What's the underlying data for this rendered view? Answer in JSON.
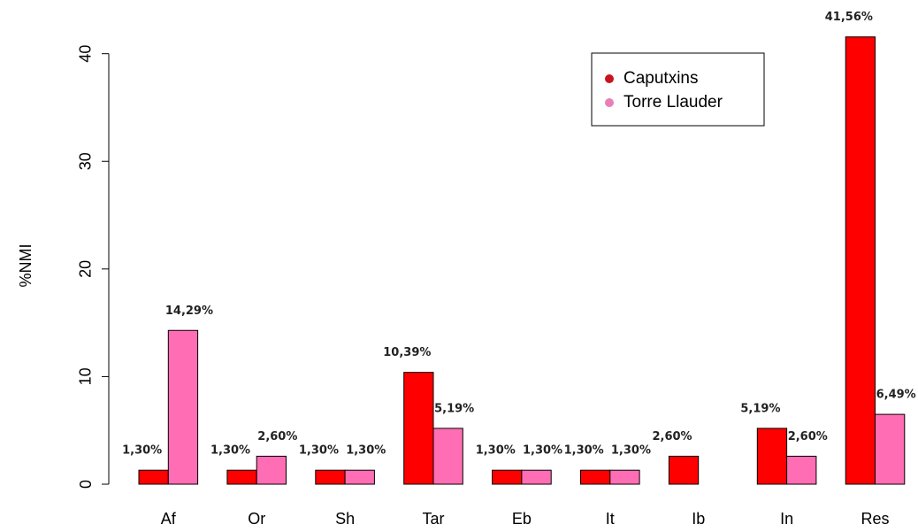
{
  "chart_data": {
    "type": "bar",
    "categories": [
      "Af",
      "Or",
      "Sh",
      "Tar",
      "Eb",
      "It",
      "Ib",
      "In",
      "Res"
    ],
    "y_label": "%NMI",
    "series": [
      {
        "name": "Caputxins",
        "color": "#ff0000",
        "legend_color": "#c8141e",
        "values": [
          1.3,
          1.3,
          1.3,
          10.39,
          1.3,
          1.3,
          2.6,
          5.19,
          41.56
        ],
        "value_labels": [
          "1,30%",
          "1,30%",
          "1,30%",
          "10,39%",
          "1,30%",
          "1,30%",
          "2,60%",
          "5,19%",
          "41,56%"
        ]
      },
      {
        "name": "Torre Llauder",
        "color": "#ff6eb4",
        "legend_color": "#e87fb8",
        "values": [
          14.29,
          2.6,
          1.3,
          5.19,
          1.3,
          1.3,
          0,
          2.6,
          6.49
        ],
        "value_labels": [
          "14,29%",
          "2,60%",
          "1,30%",
          "5,19%",
          "1,30%",
          "1,30%",
          null,
          "2,60%",
          "6,49%"
        ]
      }
    ],
    "ylim": [
      0,
      41.7
    ],
    "yticks": [
      0,
      10,
      20,
      30,
      40
    ],
    "grid": false,
    "legend": "top-right"
  }
}
